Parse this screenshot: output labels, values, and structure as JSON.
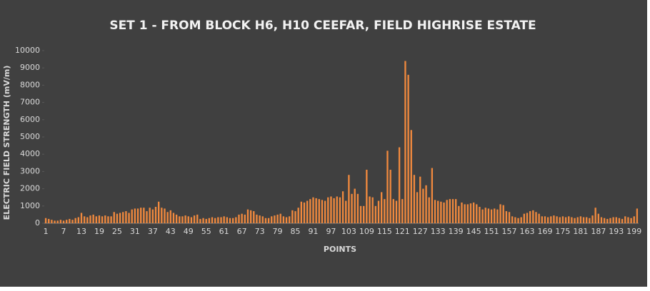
{
  "chart_data": {
    "type": "bar",
    "title": "SET 1 - FROM BLOCK H6, H10 CEEFAR, FIELD HIGHRISE ESTATE",
    "x_label": "POINTS",
    "y_label": "ELECTRIC FIELD STRENGTH (mV/m)",
    "color": "#f0893e",
    "categories": [
      "1",
      null,
      null,
      null,
      null,
      null,
      "7",
      null,
      null,
      null,
      null,
      null,
      "13",
      null,
      null,
      null,
      null,
      null,
      "19",
      null,
      null,
      null,
      null,
      null,
      "25",
      null,
      null,
      null,
      null,
      null,
      "31",
      null,
      null,
      null,
      null,
      null,
      "37",
      null,
      null,
      null,
      null,
      null,
      "43",
      null,
      null,
      null,
      null,
      null,
      "49",
      null,
      null,
      null,
      null,
      null,
      "55",
      null,
      null,
      null,
      null,
      null,
      "61",
      null,
      null,
      null,
      null,
      null,
      "67",
      null,
      null,
      null,
      null,
      null,
      "73",
      null,
      null,
      null,
      null,
      null,
      "79",
      null,
      null,
      null,
      null,
      null,
      "85",
      null,
      null,
      null,
      null,
      null,
      "91",
      null,
      null,
      null,
      null,
      null,
      "97",
      null,
      null,
      null,
      null,
      null,
      "103",
      null,
      null,
      null,
      null,
      null,
      "109",
      null,
      null,
      null,
      null,
      null,
      "115",
      null,
      null,
      null,
      null,
      null,
      "121",
      null,
      null,
      null,
      null,
      null,
      "127",
      null,
      null,
      null,
      null,
      null,
      "133",
      null,
      null,
      null,
      null,
      null,
      "139",
      null,
      null,
      null,
      null,
      null,
      "145",
      null,
      null,
      null,
      null,
      null,
      "151",
      null,
      null,
      null,
      null,
      null,
      "157",
      null,
      null,
      null,
      null,
      null,
      "163",
      null,
      null,
      null,
      null,
      null,
      "169",
      null,
      null,
      null,
      null,
      null,
      "175",
      null,
      null,
      null,
      null,
      null,
      "181",
      null,
      null,
      null,
      null,
      null,
      "187",
      null,
      null,
      null,
      null,
      null,
      "193",
      null,
      null,
      null,
      null,
      null,
      "199",
      null
    ],
    "values": [
      300,
      250,
      200,
      150,
      150,
      200,
      150,
      200,
      250,
      200,
      300,
      350,
      600,
      400,
      350,
      450,
      500,
      400,
      450,
      400,
      450,
      400,
      400,
      650,
      550,
      600,
      650,
      700,
      600,
      800,
      850,
      850,
      900,
      900,
      700,
      900,
      800,
      950,
      1250,
      900,
      850,
      650,
      750,
      600,
      500,
      400,
      400,
      450,
      400,
      350,
      450,
      500,
      250,
      300,
      250,
      300,
      350,
      300,
      350,
      350,
      400,
      350,
      300,
      300,
      350,
      500,
      550,
      500,
      800,
      750,
      700,
      500,
      450,
      400,
      300,
      300,
      400,
      450,
      500,
      550,
      400,
      350,
      400,
      750,
      700,
      900,
      1250,
      1200,
      1300,
      1400,
      1500,
      1450,
      1400,
      1350,
      1300,
      1500,
      1550,
      1450,
      1550,
      1500,
      1850,
      1300,
      2800,
      1700,
      2000,
      1700,
      1000,
      1000,
      3100,
      1550,
      1500,
      1000,
      1300,
      1800,
      1400,
      4200,
      3100,
      1400,
      1300,
      4400,
      1400,
      9400,
      8600,
      5400,
      2800,
      1800,
      2700,
      2000,
      2200,
      1500,
      3200,
      1350,
      1300,
      1250,
      1200,
      1350,
      1400,
      1400,
      1400,
      1000,
      1200,
      1100,
      1100,
      1150,
      1200,
      1100,
      950,
      800,
      900,
      850,
      800,
      850,
      800,
      1100,
      1050,
      700,
      650,
      400,
      350,
      300,
      350,
      550,
      600,
      700,
      750,
      650,
      550,
      400,
      400,
      350,
      400,
      450,
      400,
      350,
      400,
      350,
      400,
      350,
      300,
      350,
      400,
      350,
      350,
      300,
      450,
      900,
      550,
      350,
      300,
      250,
      300,
      350,
      350,
      300,
      250,
      400,
      350,
      300,
      400,
      850
    ],
    "ylim": [
      0,
      10000
    ],
    "yticks": [
      0,
      1000,
      2000,
      3000,
      4000,
      5000,
      6000,
      7000,
      8000,
      9000,
      10000
    ]
  }
}
